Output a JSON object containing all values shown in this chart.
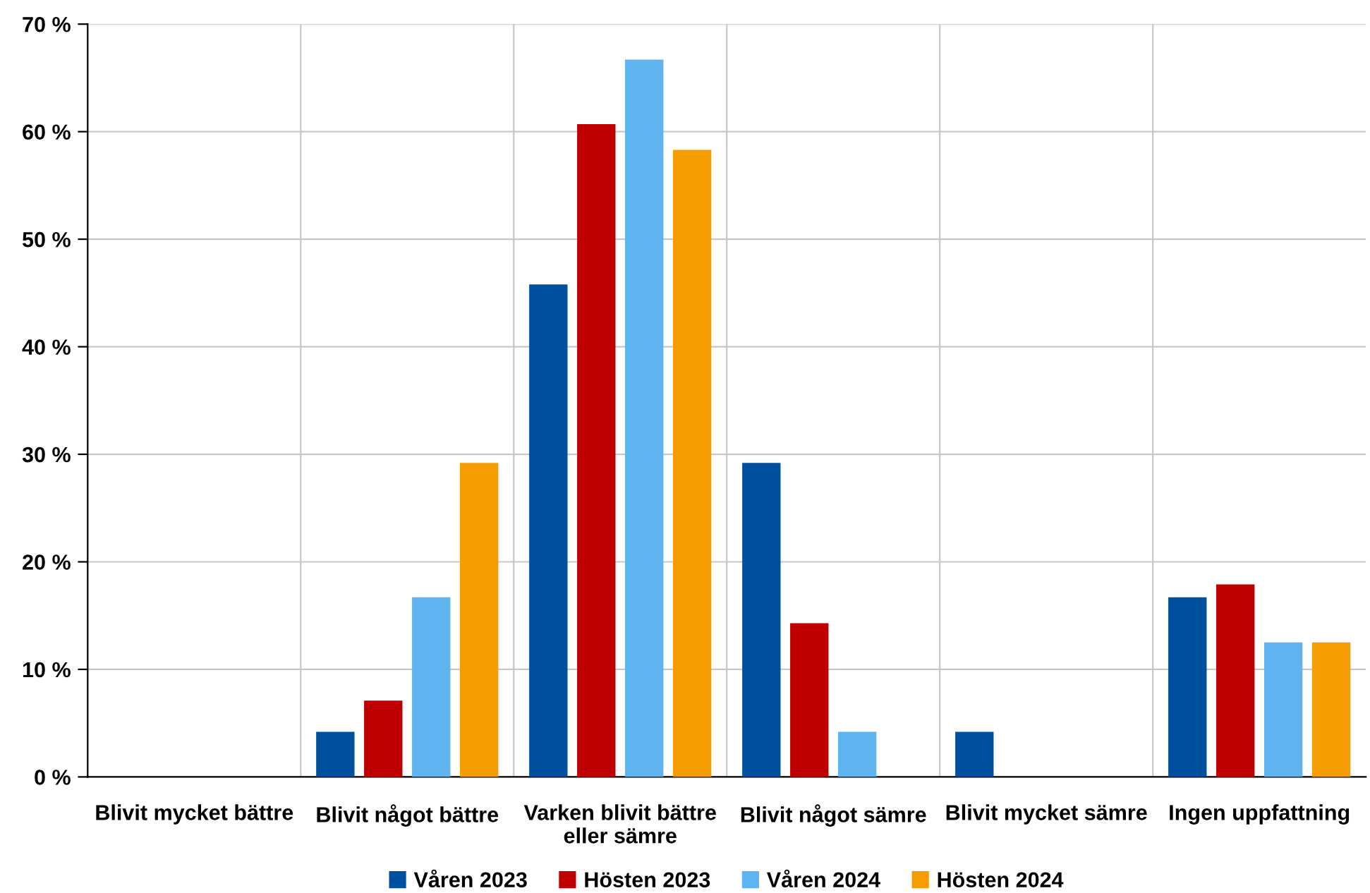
{
  "chart_data": {
    "type": "bar",
    "categories": [
      "Blivit mycket bättre",
      "Blivit något bättre",
      "Varken blivit bättre\neller sämre",
      "Blivit något sämre",
      "Blivit mycket sämre",
      "Ingen uppfattning"
    ],
    "series": [
      {
        "name": "Våren 2023",
        "color": "#0050a0",
        "values": [
          0,
          4.2,
          45.8,
          29.2,
          4.2,
          16.7
        ]
      },
      {
        "name": "Hösten 2023",
        "color": "#c00000",
        "values": [
          0,
          7.1,
          60.7,
          14.3,
          0,
          17.9
        ]
      },
      {
        "name": "Våren 2024",
        "color": "#5fb4f0",
        "values": [
          0,
          16.7,
          66.7,
          4.2,
          0,
          12.5
        ]
      },
      {
        "name": "Hösten 2024",
        "color": "#f59c00",
        "values": [
          0,
          29.2,
          58.3,
          0,
          0,
          12.5
        ]
      }
    ],
    "ylim": [
      0,
      70
    ],
    "yticks": [
      {
        "value": 0,
        "label": "0 %"
      },
      {
        "value": 10,
        "label": "10 %"
      },
      {
        "value": 20,
        "label": "20 %"
      },
      {
        "value": 30,
        "label": "30 %"
      },
      {
        "value": 40,
        "label": "40 %"
      },
      {
        "value": 50,
        "label": "50 %"
      },
      {
        "value": 60,
        "label": "60 %"
      },
      {
        "value": 70,
        "label": "70 %"
      }
    ],
    "grid": true,
    "legend": "bottom"
  }
}
